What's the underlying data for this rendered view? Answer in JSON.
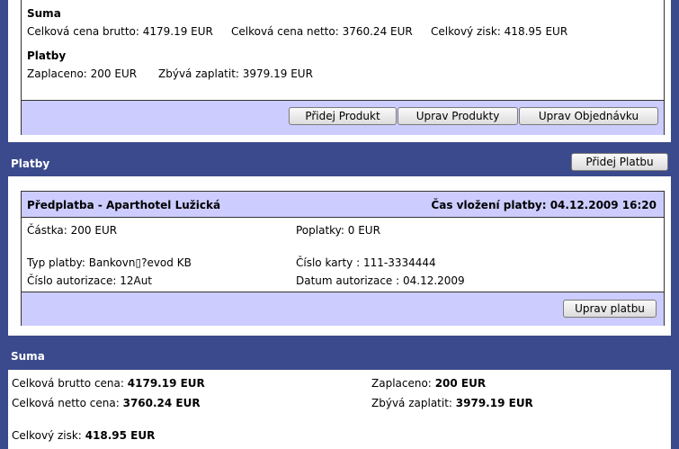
{
  "order_summary": {
    "suma_heading": "Suma",
    "brutto_text": "Celková cena brutto: 4179.19 EUR",
    "netto_text": "Celková cena netto: 3760.24 EUR",
    "zisk_text": "Celkový zisk: 418.95 EUR",
    "platby_heading": "Platby",
    "zaplaceno_text": "Zaplaceno: 200 EUR",
    "zbyva_text": "Zbývá zaplatit: 3979.19 EUR",
    "buttons": {
      "add_product": "Přidej Produkt",
      "edit_products": "Uprav Produkty",
      "edit_order": "Uprav Objednávku"
    }
  },
  "payments_section": {
    "title": "Platby",
    "add_payment": "Přidej Platbu",
    "payment": {
      "name": "Předplatba - Aparthotel Lužická",
      "time": "Čas vložení platby: 04.12.2009 16:20",
      "castka": "Částka: 200 EUR",
      "poplatky": "Poplatky: 0 EUR",
      "typ": "Typ platby: Bankovn▯?evod KB",
      "karta": "Číslo karty : 111-3334444",
      "autorizace": "Číslo autorizace: 12Aut",
      "datum": "Datum autorizace : 04.12.2009",
      "edit_payment": "Uprav platbu"
    }
  },
  "total_section": {
    "title": "Suma",
    "brutto_label": "Celková brutto cena:",
    "brutto_value": "4179.19 EUR",
    "netto_label": "Celková netto cena:",
    "netto_value": "3760.24 EUR",
    "zaplaceno_label": "Zaplaceno:",
    "zaplaceno_value": "200 EUR",
    "zbyva_label": "Zbývá zaplatit:",
    "zbyva_value": "3979.19 EUR",
    "zisk_label": "Celkový zisk:",
    "zisk_value": "418.95 EUR"
  }
}
